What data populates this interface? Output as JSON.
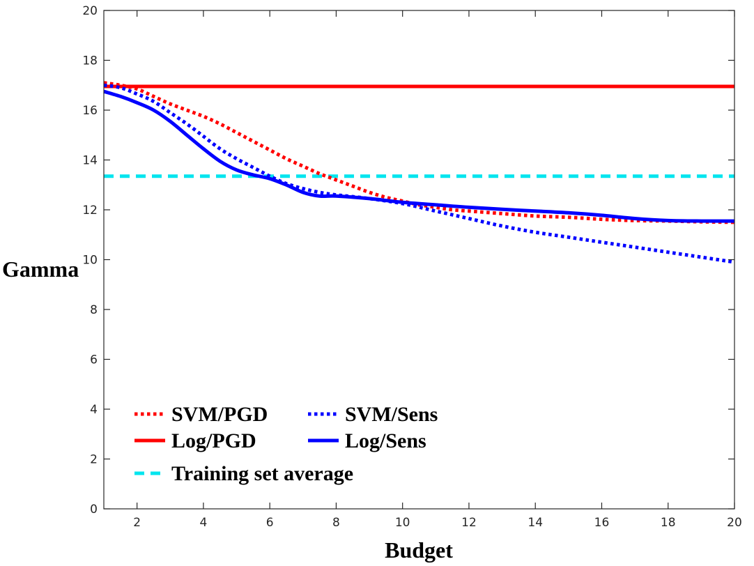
{
  "chart_data": {
    "type": "line",
    "title": "",
    "xlabel": "Budget",
    "ylabel": "Gamma",
    "xlim": [
      1,
      20
    ],
    "ylim": [
      0,
      20
    ],
    "xticks": [
      2,
      4,
      6,
      8,
      10,
      12,
      14,
      16,
      18,
      20
    ],
    "yticks": [
      0,
      2,
      4,
      6,
      8,
      10,
      12,
      14,
      16,
      18,
      20
    ],
    "grid": false,
    "legend_position": "bottom-left",
    "series": [
      {
        "key": "svm-pgd",
        "name": "SVM/PGD",
        "color": "#ff0000",
        "style": "dotted",
        "x": [
          1,
          1.5,
          2,
          2.5,
          3,
          3.5,
          4,
          4.5,
          5,
          5.5,
          6,
          6.5,
          7,
          7.5,
          8,
          8.5,
          9,
          9.5,
          10,
          10.5,
          11,
          11.5,
          12,
          13,
          14,
          15,
          16,
          17,
          18,
          19,
          20
        ],
        "y": [
          17.1,
          17.0,
          16.85,
          16.55,
          16.25,
          16.0,
          15.75,
          15.45,
          15.1,
          14.75,
          14.4,
          14.05,
          13.75,
          13.45,
          13.2,
          12.95,
          12.7,
          12.5,
          12.35,
          12.2,
          12.1,
          12.0,
          11.95,
          11.85,
          11.75,
          11.7,
          11.62,
          11.57,
          11.55,
          11.52,
          11.5
        ]
      },
      {
        "key": "log-pgd",
        "name": "Log/PGD",
        "color": "#ff0000",
        "style": "solid",
        "x": [
          1,
          20
        ],
        "y": [
          16.95,
          16.95
        ]
      },
      {
        "key": "svm-sens",
        "name": "SVM/Sens",
        "color": "#0000ff",
        "style": "dotted",
        "x": [
          1,
          1.5,
          2,
          2.5,
          3,
          3.5,
          4,
          4.5,
          5,
          5.5,
          6,
          6.5,
          7,
          7.5,
          8,
          9,
          10,
          11,
          12,
          13,
          14,
          15,
          16,
          17,
          18,
          19,
          20
        ],
        "y": [
          17.0,
          16.9,
          16.65,
          16.35,
          15.9,
          15.45,
          14.95,
          14.45,
          14.05,
          13.7,
          13.35,
          13.05,
          12.85,
          12.7,
          12.6,
          12.45,
          12.25,
          11.95,
          11.65,
          11.35,
          11.1,
          10.9,
          10.7,
          10.5,
          10.3,
          10.1,
          9.9
        ]
      },
      {
        "key": "log-sens",
        "name": "Log/Sens",
        "color": "#0000ff",
        "style": "solid",
        "x": [
          1,
          1.5,
          2,
          2.5,
          3,
          3.5,
          4,
          4.5,
          5,
          5.5,
          6,
          6.5,
          7,
          7.5,
          8,
          9,
          10,
          11,
          12,
          13,
          14,
          15,
          16,
          17,
          18,
          19,
          20
        ],
        "y": [
          16.75,
          16.55,
          16.3,
          16.0,
          15.55,
          15.0,
          14.45,
          13.95,
          13.6,
          13.4,
          13.25,
          13.0,
          12.7,
          12.55,
          12.55,
          12.45,
          12.3,
          12.2,
          12.1,
          12.02,
          11.95,
          11.88,
          11.78,
          11.65,
          11.57,
          11.55,
          11.55
        ]
      },
      {
        "key": "train-avg",
        "name": "Training set average",
        "color": "#00e5ee",
        "style": "dashed",
        "x": [
          1,
          20
        ],
        "y": [
          13.35,
          13.35
        ]
      }
    ]
  }
}
